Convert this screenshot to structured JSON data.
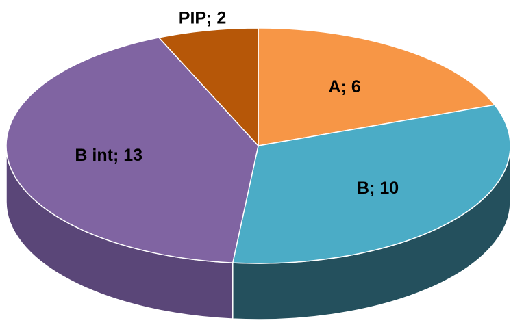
{
  "chart_data": {
    "type": "pie3d",
    "categories": [
      "A",
      "B",
      "B int",
      "PIP"
    ],
    "values": [
      6,
      10,
      13,
      2
    ],
    "value_labels": [
      "A; 6",
      "B; 10",
      "B int; 13",
      "PIP; 2"
    ],
    "colors": [
      "#f79646",
      "#4bacc6",
      "#8064a2",
      "#b65708"
    ],
    "side_colors": [
      "#b86d2f",
      "#24505d",
      "#5a4678",
      "#7e3c05"
    ]
  }
}
